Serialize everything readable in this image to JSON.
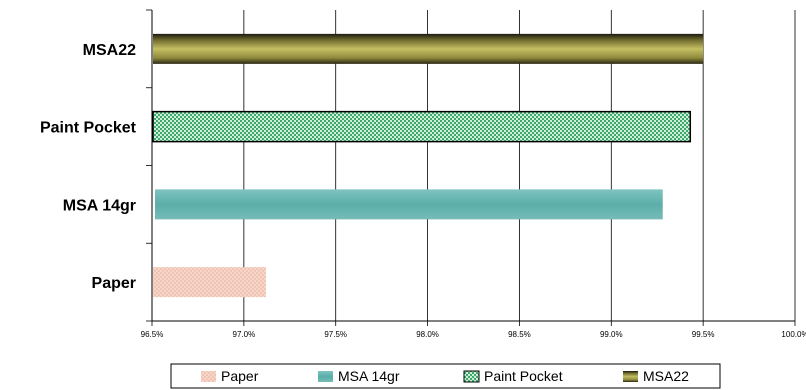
{
  "chart_data": {
    "type": "bar",
    "orientation": "horizontal",
    "categories": [
      "MSA22",
      "Paint Pocket",
      "MSA 14gr",
      "Paper"
    ],
    "values": [
      99.5,
      99.43,
      99.28,
      97.12
    ],
    "value_format": "percent",
    "xlim": [
      96.5,
      100.0
    ],
    "x_ticks": [
      "96.5%",
      "97.0%",
      "97.5%",
      "98.0%",
      "98.5%",
      "99.0%",
      "99.5%",
      "100.0%"
    ],
    "x_tick_values": [
      96.5,
      97.0,
      97.5,
      98.0,
      98.5,
      99.0,
      99.5,
      100.0
    ],
    "grid": "vertical",
    "legend_position": "bottom",
    "legend": [
      "Paper",
      "MSA 14gr",
      "Paint Pocket",
      "MSA22"
    ],
    "colors": {
      "Paper": "#f3cbbd",
      "MSA 14gr": "#5fb5b0",
      "Paint Pocket": "#7ed1a2",
      "MSA22": "#b9b455"
    },
    "title": "",
    "xlabel": "",
    "ylabel": ""
  }
}
